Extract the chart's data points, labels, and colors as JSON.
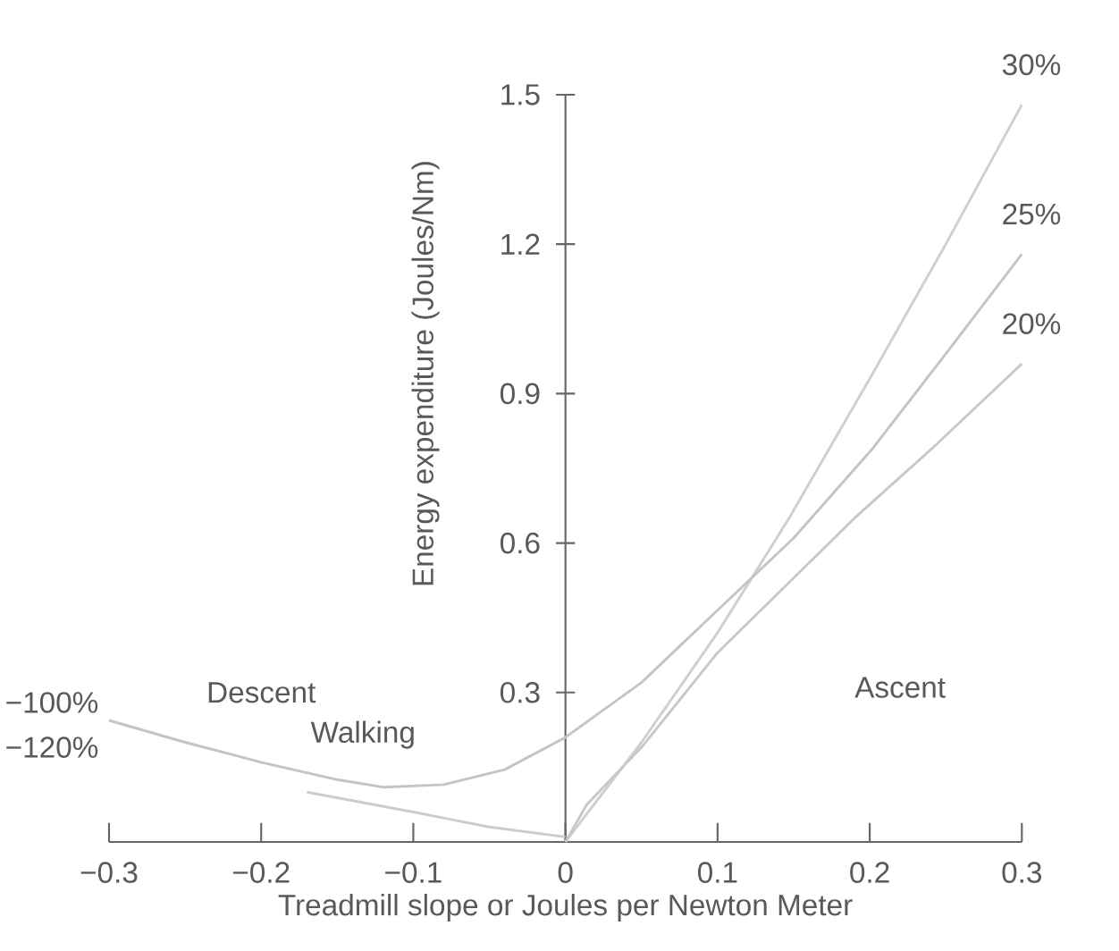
{
  "chart_data": {
    "type": "line",
    "xlabel": "Treadmill slope or Joules per Newton Meter",
    "ylabel": "Energy expenditure (Joules/Nm)",
    "xlim": [
      -0.3,
      0.3
    ],
    "ylim": [
      0,
      1.5
    ],
    "xticks": [
      {
        "value": -0.3,
        "label": "−0.3"
      },
      {
        "value": -0.2,
        "label": "−0.2"
      },
      {
        "value": -0.1,
        "label": "−0.1"
      },
      0,
      0.1,
      0.2,
      0.3
    ],
    "yticks": [
      0.3,
      0.6,
      0.9,
      1.2,
      1.5
    ],
    "grid": false,
    "marker": "none",
    "line_style": "solid",
    "series": [
      {
        "name": "30%",
        "color": "#cfcfcf",
        "x": [
          0,
          0.05,
          0.1,
          0.147,
          0.2,
          0.25,
          0.3
        ],
        "values": [
          0,
          0.2,
          0.42,
          0.65,
          0.93,
          1.2,
          1.48
        ]
      },
      {
        "name": "25%",
        "color": "#c4c4c4",
        "x": [
          -0.3,
          -0.25,
          -0.2,
          -0.15,
          -0.12,
          -0.08,
          -0.04,
          0,
          0.05,
          0.093,
          0.15,
          0.202,
          0.25,
          0.3
        ],
        "values": [
          0.244,
          0.2,
          0.16,
          0.125,
          0.11,
          0.115,
          0.145,
          0.21,
          0.32,
          0.445,
          0.61,
          0.79,
          0.98,
          1.18
        ]
      },
      {
        "name": "20%",
        "color": "#c8c8c8",
        "x": [
          0,
          0.014,
          0.05,
          0.1,
          0.19,
          0.241,
          0.3
        ],
        "values": [
          0,
          0.075,
          0.19,
          0.38,
          0.65,
          0.79,
          0.96
        ]
      },
      {
        "color": "#cccccc",
        "x": [
          -0.17,
          -0.1,
          -0.05,
          0
        ],
        "values": [
          0.1,
          0.06,
          0.03,
          0.01
        ]
      }
    ],
    "annotations": [
      "−100%",
      "−120%",
      "Descent",
      "Walking",
      "Ascent"
    ]
  }
}
